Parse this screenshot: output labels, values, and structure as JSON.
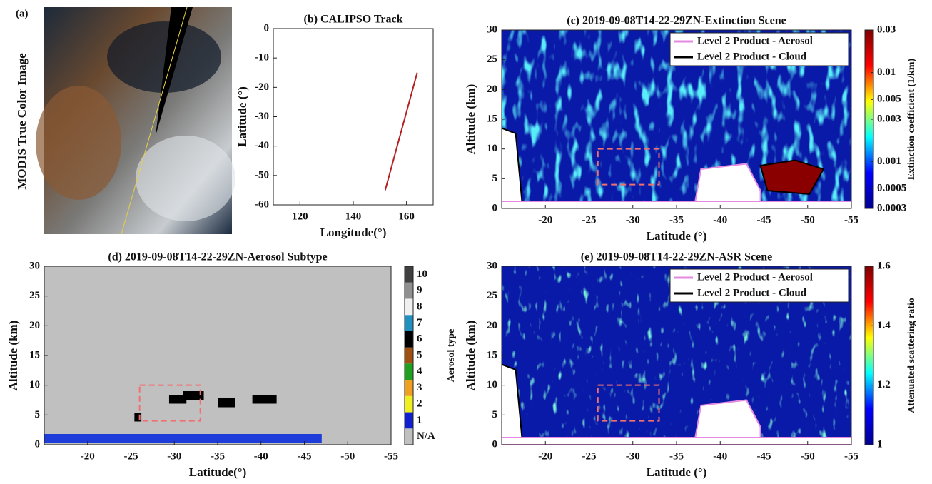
{
  "image_panel": {
    "label": "(a)",
    "caption": "MODIS True Color Image"
  },
  "chart_data": [
    {
      "type": "line",
      "title": "(b) CALIPSO Track",
      "xlabel": "Longitude(°)",
      "ylabel": "Latitude (°)",
      "xlim": [
        110,
        170
      ],
      "ylim": [
        -60,
        0
      ],
      "xticks": [
        120,
        140,
        160
      ],
      "yticks": [
        -60,
        -50,
        -40,
        -30,
        -20,
        -10,
        0
      ],
      "series": [
        {
          "color": "#b22222",
          "x": [
            164,
            152
          ],
          "values": [
            -15,
            -55
          ]
        }
      ]
    },
    {
      "type": "heatmap",
      "title": "(c) 2019-09-08T14-22-29ZN-Extinction Scene",
      "xlabel": "Latitude (°)",
      "ylabel": "Altitude (km)",
      "xlim": [
        -15,
        -55
      ],
      "ylim": [
        0,
        30
      ],
      "xticks": [
        -20,
        -25,
        -30,
        -35,
        -40,
        -45,
        -50,
        -55
      ],
      "yticks": [
        0,
        5,
        10,
        15,
        20,
        25,
        30
      ],
      "legend": [
        {
          "name": "Level 2 Product - Aerosol",
          "color": "#e58ae0"
        },
        {
          "name": "Level 2 Product - Cloud",
          "color": "#000000"
        }
      ],
      "highlight_box": {
        "x": [
          -26,
          -33
        ],
        "y": [
          4,
          10
        ],
        "color": "#f07070"
      },
      "colorbar": {
        "label": "Extinction coefficient (1/km)",
        "colormap": "jet",
        "scale": "log",
        "lim": [
          0.0003,
          0.03
        ],
        "ticks": [
          0.0003,
          0.0005,
          0.001,
          0.003,
          0.005,
          0.01,
          0.03
        ]
      }
    },
    {
      "type": "categorical-heatmap",
      "title": "(d) 2019-09-08T14-22-29ZN-Aerosol Subtype",
      "xlabel": "Latitude(°)",
      "ylabel": "Altitude (km)",
      "xlim": [
        -15,
        -55
      ],
      "ylim": [
        0,
        30
      ],
      "xticks": [
        -20,
        -25,
        -30,
        -35,
        -40,
        -45,
        -50,
        -55
      ],
      "yticks": [
        0,
        5,
        10,
        15,
        20,
        25,
        30
      ],
      "highlight_box": {
        "x": [
          -26,
          -33
        ],
        "y": [
          4,
          10
        ],
        "color": "#f07070"
      },
      "colorbar": {
        "label": "Aerosol type",
        "classes": [
          {
            "label": "N/A",
            "color": "#c0c0c0"
          },
          {
            "label": "1",
            "color": "#1020d0"
          },
          {
            "label": "2",
            "color": "#f0f020"
          },
          {
            "label": "3",
            "color": "#f0a020"
          },
          {
            "label": "4",
            "color": "#20a020"
          },
          {
            "label": "5",
            "color": "#a05010"
          },
          {
            "label": "6",
            "color": "#000000"
          },
          {
            "label": "7",
            "color": "#2090c0"
          },
          {
            "label": "8",
            "color": "#f0f0f0"
          },
          {
            "label": "9",
            "color": "#909090"
          },
          {
            "label": "10",
            "color": "#404040"
          }
        ]
      }
    },
    {
      "type": "heatmap",
      "title": "(e) 2019-09-08T14-22-29ZN-ASR Scene",
      "xlabel": "Latitude (°)",
      "ylabel": "Altitude (km)",
      "xlim": [
        -15,
        -55
      ],
      "ylim": [
        0,
        30
      ],
      "xticks": [
        -20,
        -25,
        -30,
        -35,
        -40,
        -45,
        -50,
        -55
      ],
      "yticks": [
        0,
        5,
        10,
        15,
        20,
        25,
        30
      ],
      "legend": [
        {
          "name": "Level 2 Product - Aerosol",
          "color": "#e58ae0"
        },
        {
          "name": "Level 2 Product - Cloud",
          "color": "#000000"
        }
      ],
      "highlight_box": {
        "x": [
          -26,
          -33
        ],
        "y": [
          4,
          10
        ],
        "color": "#f07070"
      },
      "colorbar": {
        "label": "Attenuated scattering ratio",
        "colormap": "jet",
        "scale": "linear",
        "lim": [
          1,
          1.6
        ],
        "ticks": [
          1,
          1.2,
          1.4,
          1.6
        ]
      }
    }
  ]
}
